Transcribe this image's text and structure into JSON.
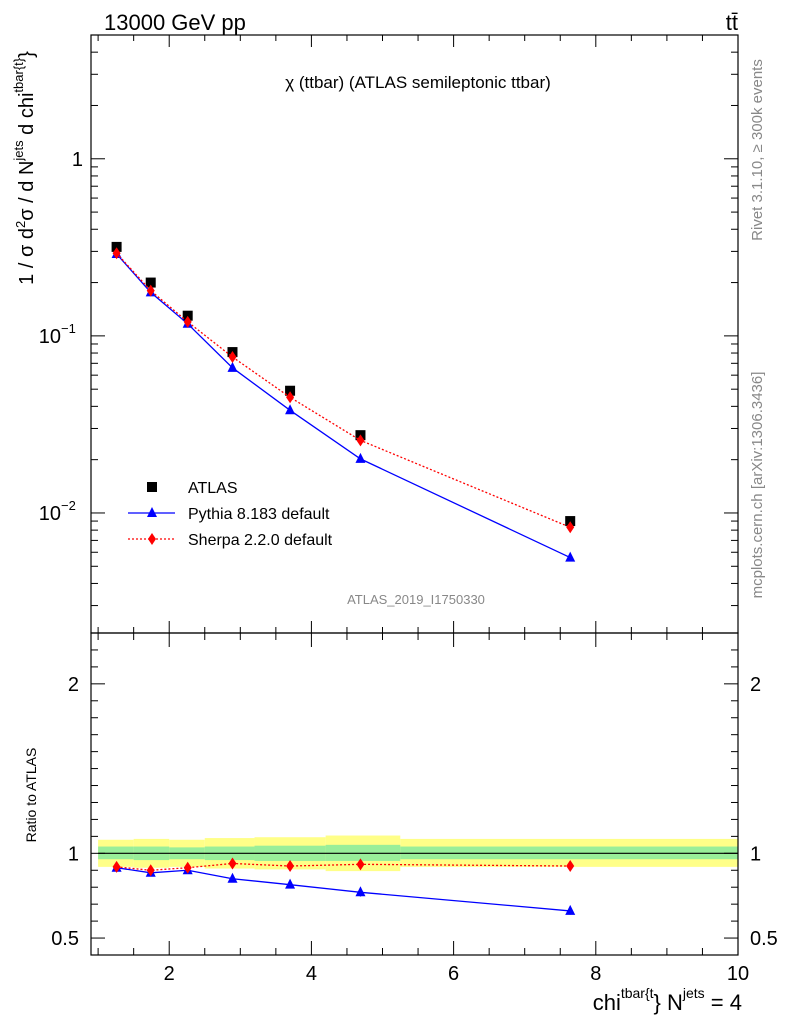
{
  "header": {
    "left": "13000 GeV pp",
    "right": "tt̄"
  },
  "side": {
    "rivet": "Rivet 3.1.10, ≥ 300k events",
    "mcplots": "mcplots.cern.ch [arXiv:1306.3436]"
  },
  "chart_data": [
    {
      "type": "scatter",
      "panel": "main",
      "title": "χ (ttbar) (ATLAS semileptonic ttbar)",
      "watermark": "ATLAS_2019_I1750330",
      "ylabel": "1 / σ d²σ / d N^jets d chi^{tbar{t}}",
      "yscale": "log",
      "xlim": [
        0.9,
        10.0
      ],
      "ylim": [
        0.0021,
        5.0
      ],
      "yticks": [
        {
          "value": 1,
          "label": "1"
        },
        {
          "value": 0.1,
          "label": "10",
          "exp": "−1"
        },
        {
          "value": 0.01,
          "label": "10",
          "exp": "−2"
        }
      ],
      "legend": {
        "position": "lower-left"
      },
      "series": [
        {
          "name": "ATLAS",
          "color": "#000000",
          "marker": "square",
          "style": "points",
          "x": [
            1.26,
            1.74,
            2.26,
            2.89,
            3.7,
            4.69,
            7.64
          ],
          "y": [
            0.318,
            0.2,
            0.13,
            0.081,
            0.049,
            0.0275,
            0.009
          ]
        },
        {
          "name": "Pythia 8.183 default",
          "color": "#0000ff",
          "marker": "triangle",
          "style": "solid",
          "x": [
            1.26,
            1.74,
            2.26,
            2.89,
            3.7,
            4.69,
            7.64
          ],
          "y": [
            0.29,
            0.176,
            0.117,
            0.066,
            0.038,
            0.0202,
            0.0056
          ]
        },
        {
          "name": "Sherpa 2.2.0 default",
          "color": "#ff0000",
          "marker": "diamond",
          "style": "dotted",
          "x": [
            1.26,
            1.74,
            2.26,
            2.89,
            3.7,
            4.69,
            7.64
          ],
          "y": [
            0.293,
            0.18,
            0.12,
            0.076,
            0.045,
            0.0257,
            0.0083
          ]
        }
      ]
    },
    {
      "type": "scatter",
      "panel": "ratio",
      "ylabel": "Ratio to ATLAS",
      "xlabel": "chi^{tbar{t}} N^jets = 4",
      "xlim": [
        0.9,
        10.0
      ],
      "ylim": [
        0.4,
        2.3
      ],
      "xticks": [
        2,
        4,
        6,
        8,
        10
      ],
      "yticks": [
        0.5,
        1,
        2
      ],
      "bands": [
        {
          "x0": 1.0,
          "x1": 1.5,
          "inner": [
            0.965,
            1.04
          ],
          "outer": [
            0.92,
            1.08
          ]
        },
        {
          "x0": 1.5,
          "x1": 2.0,
          "inner": [
            0.96,
            1.04
          ],
          "outer": [
            0.915,
            1.085
          ]
        },
        {
          "x0": 2.0,
          "x1": 2.5,
          "inner": [
            0.965,
            1.035
          ],
          "outer": [
            0.92,
            1.08
          ]
        },
        {
          "x0": 2.5,
          "x1": 3.2,
          "inner": [
            0.96,
            1.04
          ],
          "outer": [
            0.91,
            1.09
          ]
        },
        {
          "x0": 3.2,
          "x1": 4.2,
          "inner": [
            0.955,
            1.045
          ],
          "outer": [
            0.905,
            1.095
          ]
        },
        {
          "x0": 4.2,
          "x1": 5.25,
          "inner": [
            0.955,
            1.05
          ],
          "outer": [
            0.895,
            1.105
          ]
        },
        {
          "x0": 5.25,
          "x1": 10.0,
          "inner": [
            0.965,
            1.04
          ],
          "outer": [
            0.92,
            1.085
          ]
        }
      ],
      "series": [
        {
          "name": "Pythia 8.183 default",
          "color": "#0000ff",
          "marker": "triangle",
          "style": "solid",
          "x": [
            1.26,
            1.74,
            2.26,
            2.89,
            3.7,
            4.69,
            7.64
          ],
          "y": [
            0.915,
            0.885,
            0.9,
            0.85,
            0.815,
            0.77,
            0.66
          ],
          "err": [
            0.01,
            0.012,
            0.012,
            0.015,
            0.02,
            0.025,
            0.022
          ]
        },
        {
          "name": "Sherpa 2.2.0 default",
          "color": "#ff0000",
          "marker": "diamond",
          "style": "dotted",
          "x": [
            1.26,
            1.74,
            2.26,
            2.89,
            3.7,
            4.69,
            7.64
          ],
          "y": [
            0.92,
            0.9,
            0.915,
            0.94,
            0.925,
            0.935,
            0.925
          ],
          "err": [
            0.005,
            0.005,
            0.005,
            0.005,
            0.005,
            0.006,
            0.005
          ]
        }
      ]
    }
  ]
}
